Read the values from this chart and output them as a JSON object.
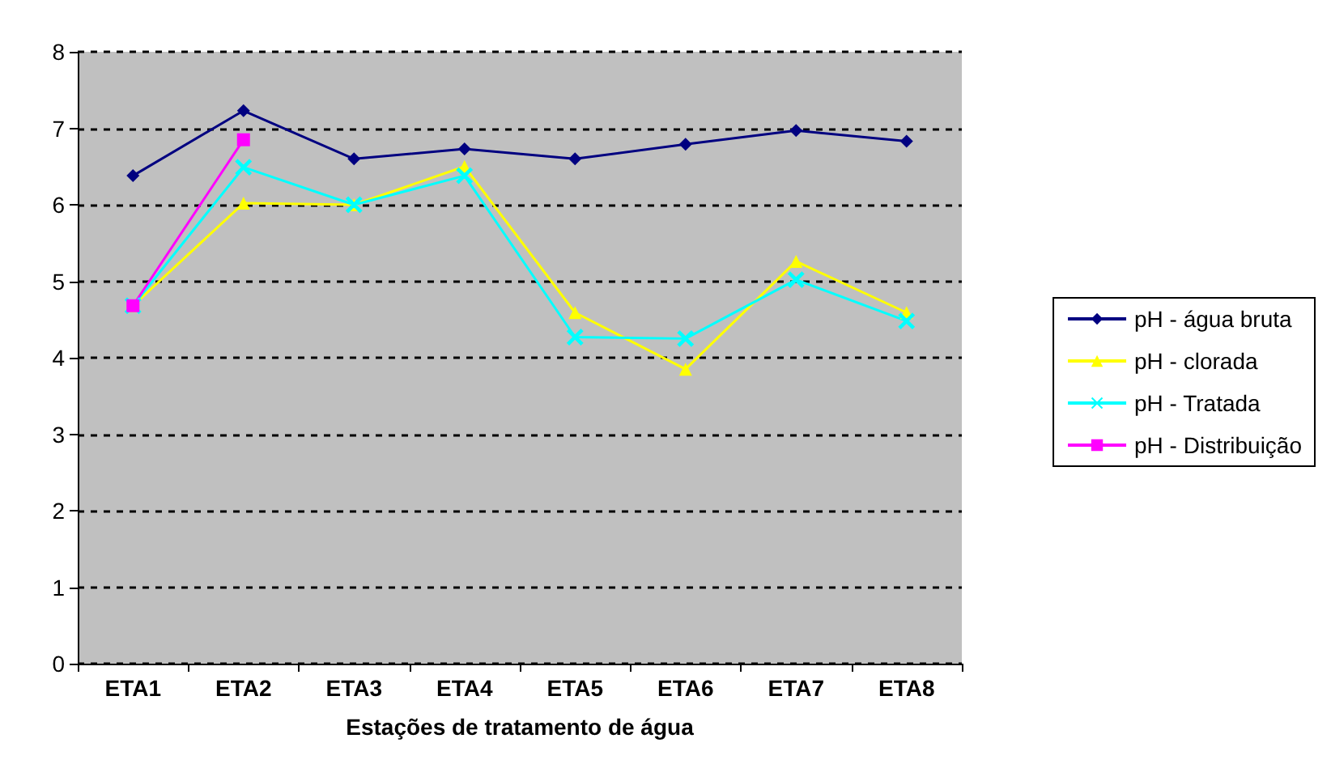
{
  "chart_data": {
    "type": "line",
    "xlabel": "Estações de tratamento de água",
    "categories": [
      "ETA1",
      "ETA2",
      "ETA3",
      "ETA4",
      "ETA5",
      "ETA6",
      "ETA7",
      "ETA8"
    ],
    "series": [
      {
        "name": "pH - água bruta",
        "color": "#000080",
        "marker": "diamond",
        "values": [
          6.38,
          7.23,
          6.6,
          6.73,
          6.6,
          6.79,
          6.97,
          6.83
        ]
      },
      {
        "name": "pH - clorada",
        "color": "#ffff00",
        "marker": "triangle",
        "values": [
          4.68,
          6.02,
          6.0,
          6.5,
          4.59,
          3.85,
          5.26,
          4.59
        ]
      },
      {
        "name": "pH - Tratada",
        "color": "#00ffff",
        "marker": "cross",
        "values": [
          4.68,
          6.49,
          6.0,
          6.38,
          4.27,
          4.25,
          5.02,
          4.48
        ]
      },
      {
        "name": "pH - Distribuição",
        "color": "#ff00ff",
        "marker": "square",
        "values": [
          4.68,
          6.85,
          null,
          null,
          null,
          null,
          null,
          null
        ]
      }
    ],
    "ylim": [
      0,
      8
    ],
    "yticks": [
      0,
      1,
      2,
      3,
      4,
      5,
      6,
      7,
      8
    ],
    "grid": "y",
    "legend": "right",
    "line_style": "solid"
  }
}
